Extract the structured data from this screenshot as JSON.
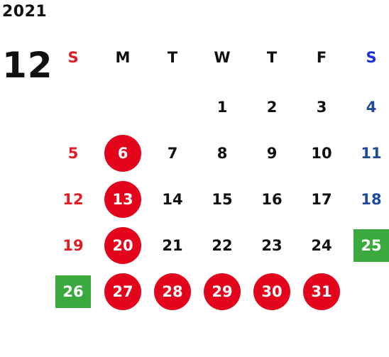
{
  "year": "2021",
  "month": "12",
  "weekdays": [
    "S",
    "M",
    "T",
    "W",
    "T",
    "F",
    "S"
  ],
  "weeks": [
    [
      "",
      "",
      "",
      "1",
      "2",
      "3",
      "4"
    ],
    [
      "5",
      "6",
      "7",
      "8",
      "9",
      "10",
      "11"
    ],
    [
      "12",
      "13",
      "14",
      "15",
      "16",
      "17",
      "18"
    ],
    [
      "19",
      "20",
      "21",
      "22",
      "23",
      "24",
      "25"
    ],
    [
      "26",
      "27",
      "28",
      "29",
      "30",
      "31",
      ""
    ]
  ],
  "marked_circle": [
    "6",
    "13",
    "20",
    "27",
    "28",
    "29",
    "30",
    "31"
  ],
  "marked_square": [
    "25",
    "26"
  ],
  "colors": {
    "sunday": "#e31b23",
    "saturday": "#1e4a9c",
    "circle": "#e3051b",
    "square": "#3aaa3f"
  }
}
